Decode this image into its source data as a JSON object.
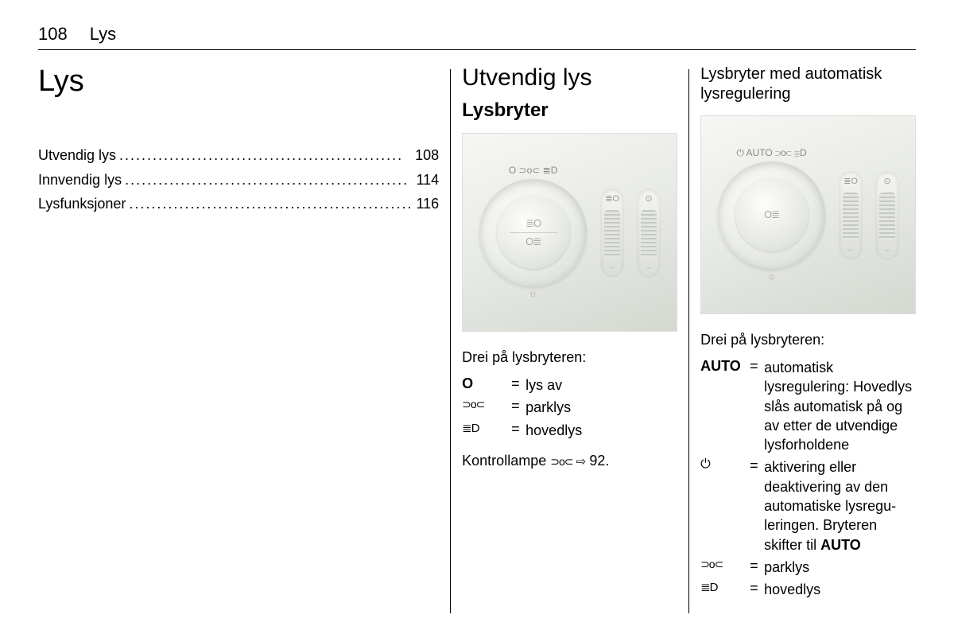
{
  "page": {
    "number": "108",
    "section": "Lys"
  },
  "col1": {
    "title": "Lys",
    "toc": [
      {
        "label": "Utvendig lys",
        "page": "108"
      },
      {
        "label": "Innvendig lys",
        "page": "114"
      },
      {
        "label": "Lysfunksjoner",
        "page": "116"
      }
    ]
  },
  "col2": {
    "h2": "Utvendig lys",
    "h3": "Lysbryter",
    "dial_top_labels": "O  ⊃o⊂  ≣D",
    "dial_center_top": "≣O",
    "dial_center_bottom": "O≣",
    "dial_bottom": "☼",
    "caption": "Drei på lysbryteren:",
    "legend": [
      {
        "sym": "O",
        "desc": "lys av",
        "bold": true
      },
      {
        "sym": "⊃o⊂",
        "desc": "parklys",
        "cls": "sym-park"
      },
      {
        "sym": "≣D",
        "desc": "hovedlys",
        "cls": "sym-head"
      }
    ],
    "note_prefix": "Kontrollampe ",
    "note_sym": "⊃o⊂",
    "note_arrow": " ⇨ ",
    "note_ref": "92."
  },
  "col3": {
    "h4": "Lysbryter med automatisk lysregulering",
    "dial_top_labels": "⏻  AUTO  ⊃o⊂  ≣D",
    "dial_center": "O≣",
    "dial_bottom": "☼",
    "caption": "Drei på lysbryteren:",
    "legend": [
      {
        "sym": "AUTO",
        "desc_pre": "automatisk lysregulering: Hovedlys slås automatisk på og av etter de utvendige lysforholdene",
        "bold": true
      },
      {
        "sym": "⏻",
        "desc_pre": "aktivering eller deaktivering av den automatiske lysregu­leringen. Bryteren skifter til ",
        "desc_bold": "AUTO",
        "cls": "sym-power"
      },
      {
        "sym": "⊃o⊂",
        "desc_pre": "parklys",
        "cls": "sym-park"
      },
      {
        "sym": "≣D",
        "desc_pre": "hovedlys",
        "cls": "sym-head"
      }
    ]
  },
  "colors": {
    "text": "#000000",
    "background": "#ffffff",
    "photo_light": "#f6f7f4",
    "photo_dark": "#d5d8d1",
    "icon_muted": "#999999"
  }
}
